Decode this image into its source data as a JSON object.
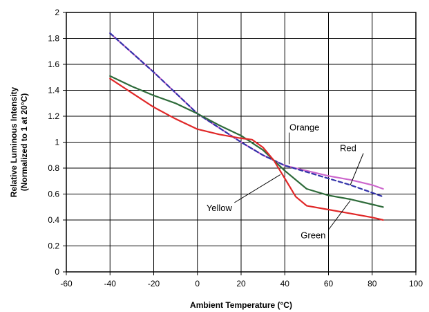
{
  "chart_data": {
    "type": "line",
    "title": "",
    "xlabel": "Ambient Temperature (°C)",
    "ylabel_lines": [
      "Relative Luminous Intensity",
      "(Normalized to 1 at 20°C)"
    ],
    "xlim": [
      -60,
      100
    ],
    "ylim": [
      0,
      2
    ],
    "x_ticks": [
      -60,
      -40,
      -20,
      0,
      20,
      40,
      60,
      80,
      100
    ],
    "y_ticks": [
      0,
      0.2,
      0.4,
      0.6,
      0.8,
      1,
      1.2,
      1.4,
      1.6,
      1.8,
      2
    ],
    "x_tick_labels": [
      "-60",
      "-40",
      "-20",
      "0",
      "20",
      "40",
      "60",
      "80",
      "100"
    ],
    "y_tick_labels": [
      "0",
      "0.2",
      "0.4",
      "0.6",
      "0.8",
      "1",
      "1.2",
      "1.4",
      "1.6",
      "1.8",
      "2"
    ],
    "grid": true,
    "series": [
      {
        "name": "Orange",
        "color": "#cc66cc",
        "dash": false,
        "points": [
          [
            -40,
            1.84
          ],
          [
            -20,
            1.54
          ],
          [
            0,
            1.22
          ],
          [
            20,
            1.0
          ],
          [
            30,
            0.9
          ],
          [
            40,
            0.82
          ],
          [
            50,
            0.78
          ],
          [
            60,
            0.74
          ],
          [
            70,
            0.71
          ],
          [
            80,
            0.67
          ],
          [
            85,
            0.64
          ]
        ]
      },
      {
        "name": "Red",
        "color": "#3333aa",
        "dash": true,
        "points": [
          [
            -40,
            1.84
          ],
          [
            -20,
            1.54
          ],
          [
            0,
            1.22
          ],
          [
            20,
            1.0
          ],
          [
            30,
            0.9
          ],
          [
            40,
            0.82
          ],
          [
            50,
            0.77
          ],
          [
            60,
            0.72
          ],
          [
            70,
            0.67
          ],
          [
            80,
            0.61
          ],
          [
            85,
            0.58
          ]
        ]
      },
      {
        "name": "Green",
        "color": "#2e6b3a",
        "dash": false,
        "points": [
          [
            -40,
            1.51
          ],
          [
            -30,
            1.43
          ],
          [
            -20,
            1.36
          ],
          [
            -10,
            1.3
          ],
          [
            0,
            1.22
          ],
          [
            10,
            1.13
          ],
          [
            20,
            1.05
          ],
          [
            30,
            0.94
          ],
          [
            40,
            0.78
          ],
          [
            50,
            0.64
          ],
          [
            60,
            0.59
          ],
          [
            70,
            0.56
          ],
          [
            80,
            0.52
          ],
          [
            85,
            0.5
          ]
        ]
      },
      {
        "name": "Yellow",
        "color": "#e02828",
        "dash": false,
        "points": [
          [
            -40,
            1.49
          ],
          [
            -30,
            1.38
          ],
          [
            -20,
            1.27
          ],
          [
            -10,
            1.18
          ],
          [
            0,
            1.1
          ],
          [
            10,
            1.06
          ],
          [
            20,
            1.03
          ],
          [
            25,
            1.02
          ],
          [
            30,
            0.96
          ],
          [
            35,
            0.86
          ],
          [
            40,
            0.72
          ],
          [
            45,
            0.58
          ],
          [
            50,
            0.51
          ],
          [
            60,
            0.48
          ],
          [
            70,
            0.45
          ],
          [
            80,
            0.42
          ],
          [
            85,
            0.4
          ]
        ]
      }
    ],
    "annotations": [
      {
        "text": "Orange",
        "x": 49,
        "y": 1.09,
        "arrow_to": [
          42,
          0.83
        ]
      },
      {
        "text": "Red",
        "x": 69,
        "y": 0.93,
        "arrow_to": [
          70,
          0.67
        ]
      },
      {
        "text": "Yellow",
        "x": 10,
        "y": 0.47,
        "arrow_to": [
          38,
          0.75
        ]
      },
      {
        "text": "Green",
        "x": 53,
        "y": 0.26,
        "arrow_to": [
          70,
          0.55
        ]
      }
    ]
  }
}
